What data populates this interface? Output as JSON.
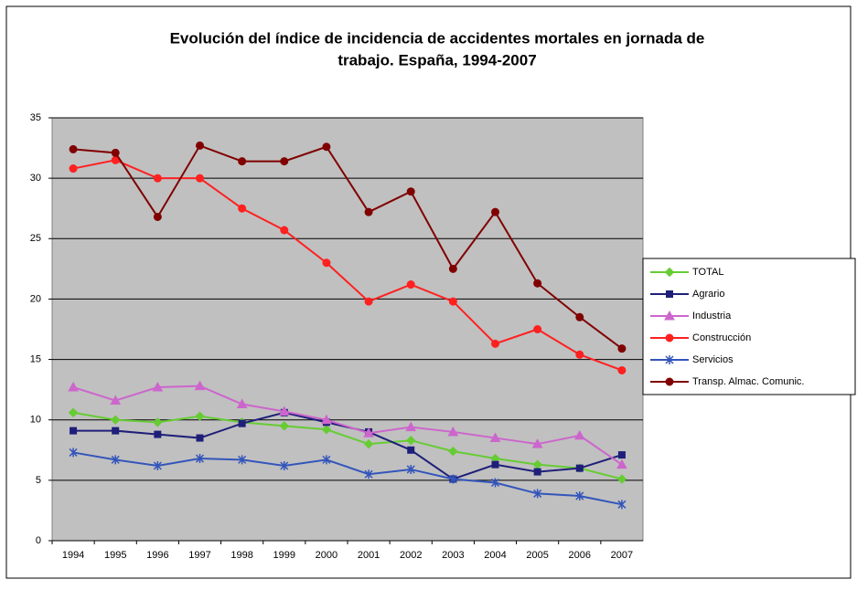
{
  "chart_data": {
    "type": "line",
    "title": [
      "Evolución del índice de incidencia de accidentes mortales en jornada de",
      "trabajo. España, 1994-2007"
    ],
    "categories": [
      "1994",
      "1995",
      "1996",
      "1997",
      "1998",
      "1999",
      "2000",
      "2001",
      "2002",
      "2003",
      "2004",
      "2005",
      "2006",
      "2007"
    ],
    "ylim": [
      0,
      35
    ],
    "yticks": [
      0,
      5,
      10,
      15,
      20,
      25,
      30,
      35
    ],
    "grid": true,
    "legend": "right",
    "series": [
      {
        "name": "TOTAL",
        "color": "#66cc33",
        "marker": "diamond",
        "values": [
          10.6,
          10.0,
          9.8,
          10.3,
          9.8,
          9.5,
          9.2,
          8.0,
          8.3,
          7.4,
          6.8,
          6.3,
          6.0,
          5.1
        ]
      },
      {
        "name": "Agrario",
        "color": "#1f1f7a",
        "marker": "square",
        "values": [
          9.1,
          9.1,
          8.8,
          8.5,
          9.7,
          10.6,
          9.8,
          9.0,
          7.5,
          5.1,
          6.3,
          5.7,
          6.0,
          7.1
        ]
      },
      {
        "name": "Industria",
        "color": "#cc66cc",
        "marker": "triangle",
        "values": [
          12.7,
          11.6,
          12.7,
          12.8,
          11.3,
          10.7,
          10.0,
          8.9,
          9.4,
          9.0,
          8.5,
          8.0,
          8.7,
          6.3
        ]
      },
      {
        "name": "Construcción",
        "color": "#ff2020",
        "marker": "circle",
        "values": [
          30.8,
          31.5,
          30.0,
          30.0,
          27.5,
          25.7,
          23.0,
          19.8,
          21.2,
          19.8,
          16.3,
          17.5,
          15.4,
          14.1
        ]
      },
      {
        "name": "Servicios",
        "color": "#3355bb",
        "marker": "asterisk",
        "values": [
          7.3,
          6.7,
          6.2,
          6.8,
          6.7,
          6.2,
          6.7,
          5.5,
          5.9,
          5.1,
          4.8,
          3.9,
          3.7,
          3.0
        ]
      },
      {
        "name": "Transp. Almac. Comunic.",
        "color": "#800000",
        "marker": "circle",
        "values": [
          32.4,
          32.1,
          26.8,
          32.7,
          31.4,
          31.4,
          32.6,
          27.2,
          28.9,
          22.5,
          27.2,
          21.3,
          18.5,
          15.9
        ]
      }
    ]
  }
}
